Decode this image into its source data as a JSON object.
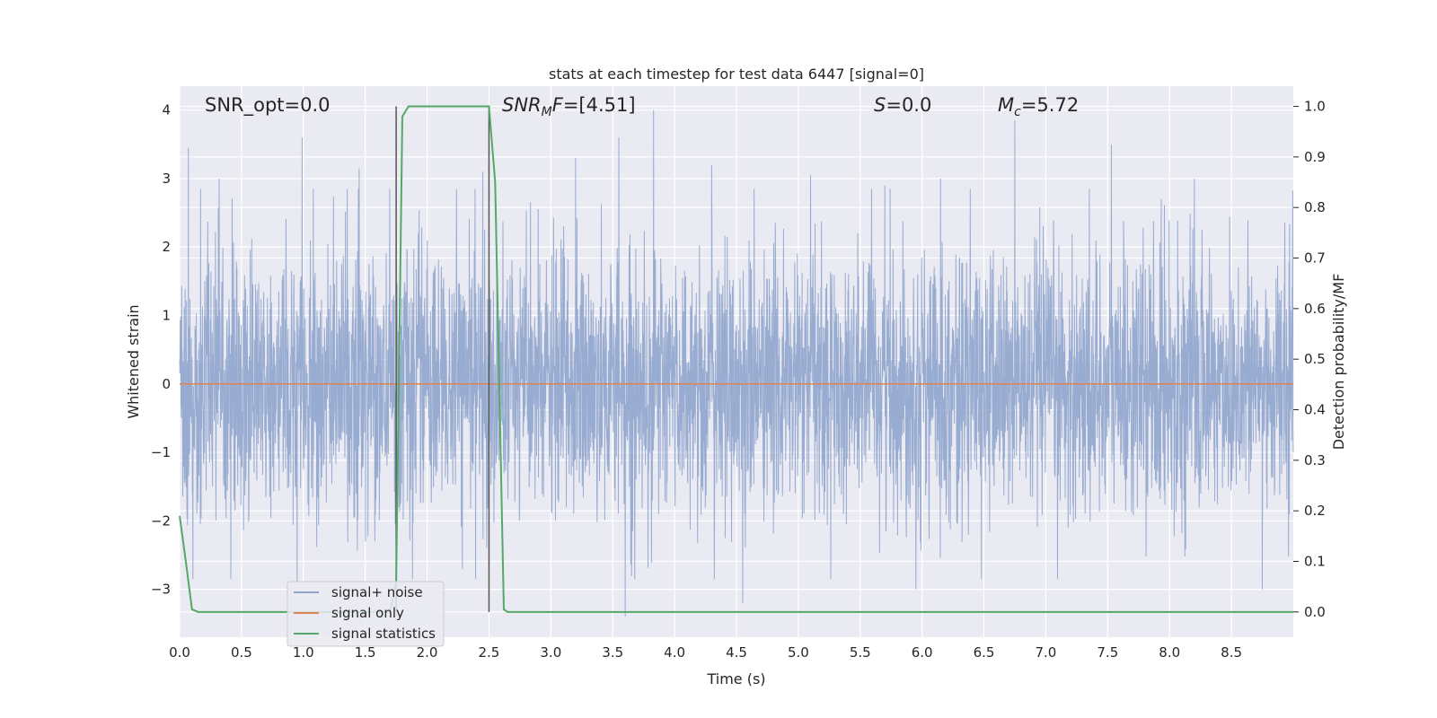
{
  "chart_data": {
    "type": "line",
    "title": "stats at each timestep for test data 6447 [signal=0]",
    "xlabel": "Time (s)",
    "ylabel": "Whitened strain",
    "ylabel_right": "Detection probability/MF",
    "xlim": [
      0,
      9
    ],
    "ylim": [
      -3.7,
      4.35
    ],
    "ylim_right": [
      -0.05,
      1.04
    ],
    "x_ticks": [
      0.0,
      0.5,
      1.0,
      1.5,
      2.0,
      2.5,
      3.0,
      3.5,
      4.0,
      4.5,
      5.0,
      5.5,
      6.0,
      6.5,
      7.0,
      7.5,
      8.0,
      8.5
    ],
    "x_tick_labels": [
      "0.0",
      "0.5",
      "1.0",
      "1.5",
      "2.0",
      "2.5",
      "3.0",
      "3.5",
      "4.0",
      "4.5",
      "5.0",
      "5.5",
      "6.0",
      "6.5",
      "7.0",
      "7.5",
      "8.0",
      "8.5"
    ],
    "y_ticks": [
      -3,
      -2,
      -1,
      0,
      1,
      2,
      3,
      4
    ],
    "y_tick_labels": [
      "−3",
      "−2",
      "−1",
      "0",
      "1",
      "2",
      "3",
      "4"
    ],
    "y_ticks_right": [
      0.0,
      0.1,
      0.2,
      0.3,
      0.4,
      0.5,
      0.6,
      0.7,
      0.8,
      0.9,
      1.0
    ],
    "y_tick_labels_right": [
      "0.0",
      "0.1",
      "0.2",
      "0.3",
      "0.4",
      "0.5",
      "0.6",
      "0.7",
      "0.8",
      "0.9",
      "1.0"
    ],
    "grid": true,
    "legend_position": "lower-left",
    "annotations": {
      "snr_opt": "SNR_opt=0.0",
      "snr_mf_sym": "SNR",
      "snr_mf_sub": "M",
      "snr_mf_rest": "F=[4.51]",
      "s_sym": "S",
      "s_rest": "=0.0",
      "mc_sym": "M",
      "mc_sub": "c",
      "mc_rest": "=5.72"
    },
    "vlines_x": [
      1.75,
      2.5
    ],
    "series": [
      {
        "name": "signal+ noise",
        "color": "#8fa4cc",
        "description": "dense whitened noise, approximately Gaussian, peaks reaching about +4.0 and -3.4",
        "peaks": [
          [
            0.07,
            3.45
          ],
          [
            0.32,
            3.0
          ],
          [
            0.99,
            3.6
          ],
          [
            1.45,
            3.15
          ],
          [
            2.45,
            3.1
          ],
          [
            3.2,
            3.3
          ],
          [
            3.55,
            3.6
          ],
          [
            3.83,
            4.0
          ],
          [
            4.3,
            3.2
          ],
          [
            5.1,
            3.05
          ],
          [
            5.7,
            2.9
          ],
          [
            6.15,
            3.0
          ],
          [
            6.75,
            3.85
          ],
          [
            7.53,
            3.5
          ],
          [
            8.2,
            3.0
          ],
          [
            3.6,
            -3.4
          ],
          [
            4.55,
            -3.2
          ],
          [
            5.95,
            -3.0
          ],
          [
            8.75,
            -3.0
          ],
          [
            0.95,
            -2.9
          ]
        ]
      },
      {
        "name": "signal only",
        "color": "#dd8452",
        "x": [
          0,
          9
        ],
        "y": [
          0,
          0
        ]
      },
      {
        "name": "signal statistics",
        "color": "#55a868",
        "axis": "right",
        "x": [
          0.0,
          0.05,
          0.1,
          0.15,
          1.7,
          1.75,
          1.8,
          1.85,
          2.5,
          2.55,
          2.62,
          2.65,
          2.7,
          9.0
        ],
        "y": [
          0.19,
          0.1,
          0.005,
          0.0,
          0.0,
          0.06,
          0.98,
          1.0,
          1.0,
          0.85,
          0.005,
          0.0,
          0.0,
          0.0
        ]
      }
    ]
  }
}
